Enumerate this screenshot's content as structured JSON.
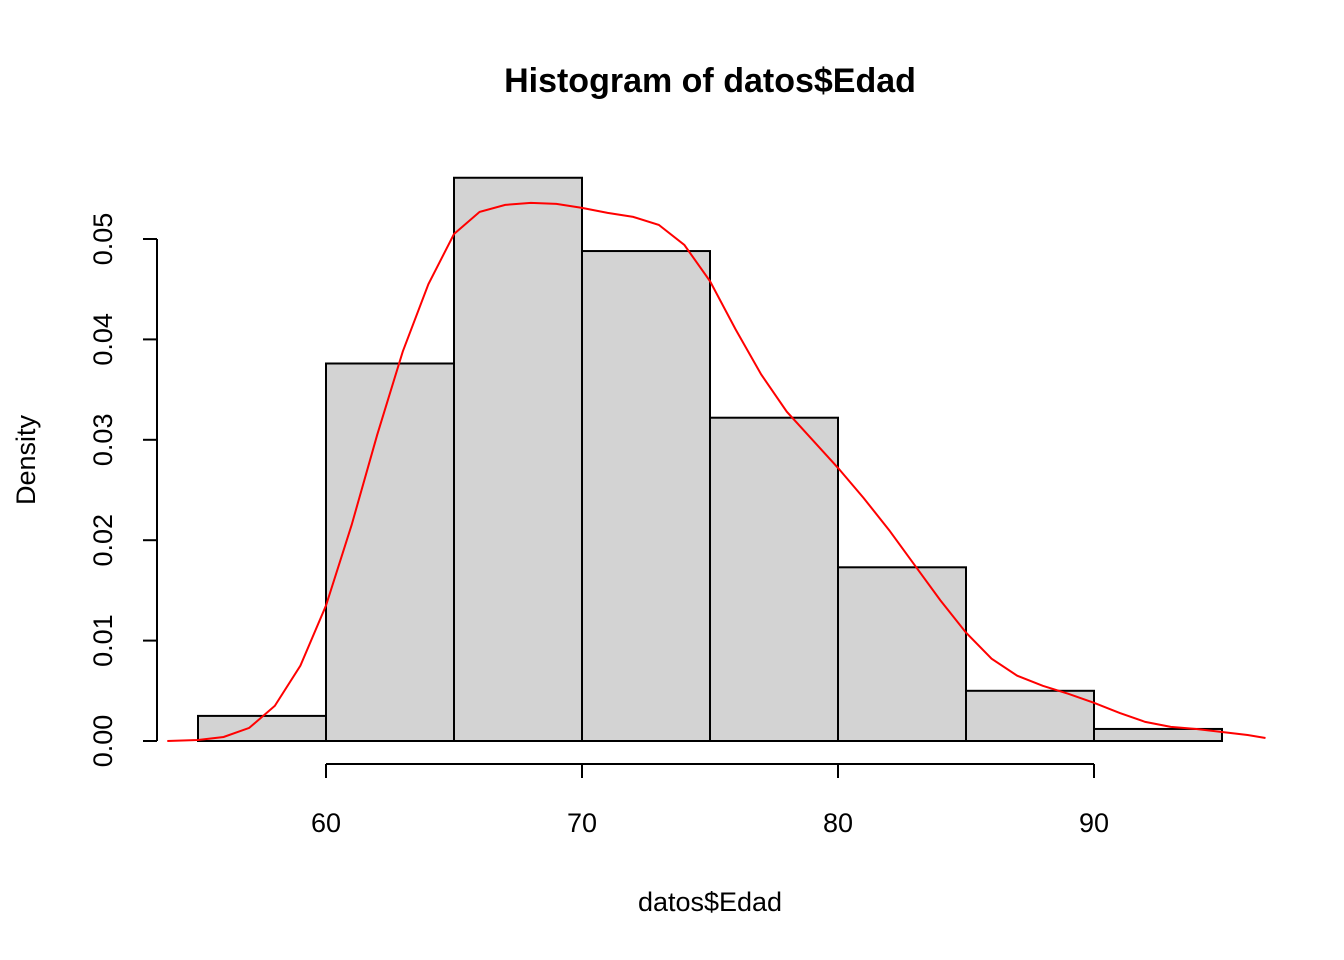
{
  "chart_data": {
    "type": "bar",
    "subtype": "histogram",
    "title": "Histogram of datos$Edad",
    "xlabel": "datos$Edad",
    "ylabel": "Density",
    "xlim": [
      53.4,
      96.6
    ],
    "ylim": [
      0,
      0.056
    ],
    "x_ticks": [
      60,
      70,
      80,
      90
    ],
    "y_ticks": [
      "0.00",
      "0.01",
      "0.02",
      "0.03",
      "0.04",
      "0.05"
    ],
    "bins": [
      {
        "from": 55,
        "to": 60,
        "density": 0.0025
      },
      {
        "from": 60,
        "to": 65,
        "density": 0.0376
      },
      {
        "from": 65,
        "to": 70,
        "density": 0.0561
      },
      {
        "from": 70,
        "to": 75,
        "density": 0.0488
      },
      {
        "from": 75,
        "to": 80,
        "density": 0.0322
      },
      {
        "from": 80,
        "to": 85,
        "density": 0.0173
      },
      {
        "from": 85,
        "to": 90,
        "density": 0.005
      },
      {
        "from": 90,
        "to": 95,
        "density": 0.0012
      }
    ],
    "density_curve": {
      "x": [
        53.8,
        55,
        56,
        57,
        58,
        59,
        60,
        61,
        62,
        63,
        64,
        65,
        66,
        67,
        68,
        69,
        70,
        71,
        72,
        73,
        74,
        75,
        76,
        77,
        78,
        79,
        80,
        81,
        82,
        83,
        84,
        85,
        86,
        87,
        88,
        89,
        90,
        91,
        92,
        93,
        94,
        95,
        96,
        96.7
      ],
      "y": [
        0.0,
        0.0001,
        0.0004,
        0.0013,
        0.0035,
        0.0075,
        0.0135,
        0.0215,
        0.0305,
        0.0388,
        0.0455,
        0.0505,
        0.0527,
        0.0534,
        0.0536,
        0.0535,
        0.0531,
        0.0526,
        0.0522,
        0.0514,
        0.0494,
        0.0458,
        0.041,
        0.0365,
        0.0328,
        0.03,
        0.0272,
        0.0242,
        0.021,
        0.0175,
        0.014,
        0.0108,
        0.0082,
        0.0065,
        0.0055,
        0.0047,
        0.0038,
        0.0028,
        0.0019,
        0.0014,
        0.0012,
        0.0009,
        0.0006,
        0.0003
      ]
    },
    "bar_fill": "#d3d3d3",
    "curve_color": "#ff0000",
    "grid": false,
    "legend": "none"
  }
}
